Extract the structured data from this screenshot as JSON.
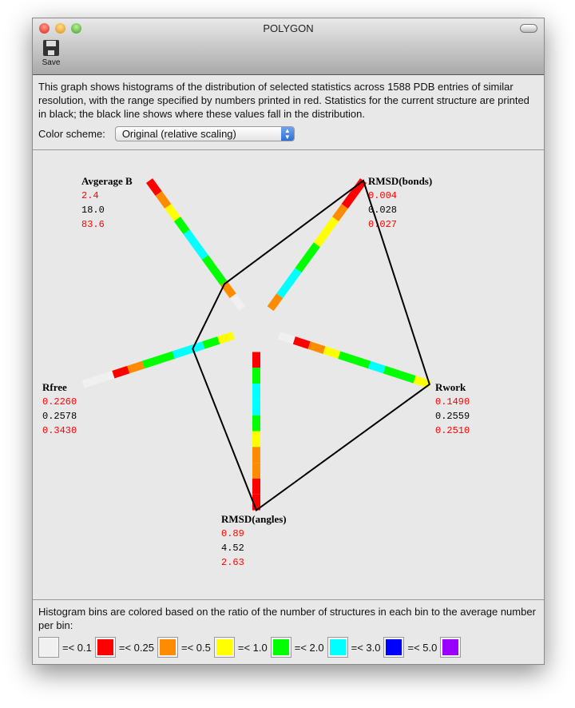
{
  "window": {
    "title": "POLYGON"
  },
  "toolbar": {
    "save_label": "Save"
  },
  "description": "This graph shows histograms of the distribution of selected statistics across 1588 PDB entries of similar resolution, with the range specified by numbers printed in red.  Statistics for the current structure are printed in black; the black line shows where these values fall in the distribution.",
  "color_scheme": {
    "label": "Color scheme:",
    "selected": "Original (relative scaling)"
  },
  "chart_data": {
    "type": "radar-histogram",
    "axes": [
      {
        "name": "RMSD(angles)",
        "min": "0.89",
        "current": "4.52",
        "max": "2.63",
        "bins": [
          "#ff0000",
          "#00ff00",
          "#00ffff",
          "#00ffff",
          "#00ff00",
          "#ffff00",
          "#ff8c00",
          "#ff8c00",
          "#ff0000",
          "#ff0000"
        ]
      },
      {
        "name": "Rwork",
        "min": "0.1490",
        "current": "0.2559",
        "max": "0.2510",
        "bins": [
          "#f0f0f0",
          "#ff0000",
          "#ff8c00",
          "#ffff00",
          "#00ff00",
          "#00ff00",
          "#00ffff",
          "#00ff00",
          "#00ff00",
          "#ffff00"
        ]
      },
      {
        "name": "RMSD(bonds)",
        "min": "0.004",
        "current": "0.028",
        "max": "0.027",
        "bins": [
          "#ff8c00",
          "#00ffff",
          "#00ffff",
          "#00ff00",
          "#00ff00",
          "#ffff00",
          "#ffff00",
          "#ff8c00",
          "#ff0000",
          "#ff0000"
        ]
      },
      {
        "name": "Avgerage B",
        "min": "2.4",
        "current": "18.0",
        "max": "83.6",
        "bins": [
          "#f0f0f0",
          "#ff8c00",
          "#00ff00",
          "#00ff00",
          "#00ffff",
          "#00ffff",
          "#00ff00",
          "#ffff00",
          "#ff8c00",
          "#ff0000"
        ]
      },
      {
        "name": "Rfree",
        "min": "0.2260",
        "current": "0.2578",
        "max": "0.3430",
        "bins": [
          "#ffff00",
          "#00ff00",
          "#00ffff",
          "#00ffff",
          "#00ff00",
          "#00ff00",
          "#ff8c00",
          "#ff0000",
          "#f0f0f0",
          "#f0f0f0"
        ]
      }
    ]
  },
  "legend": {
    "text": "Histogram bins are colored based on the ratio of the number of structures in each bin to the average number per bin:",
    "items": [
      {
        "color": "#f0f0f0",
        "label": "=< 0.1"
      },
      {
        "color": "#ff0000",
        "label": "=< 0.25"
      },
      {
        "color": "#ff8c00",
        "label": "=< 0.5"
      },
      {
        "color": "#ffff00",
        "label": "=< 1.0"
      },
      {
        "color": "#00ff00",
        "label": "=< 2.0"
      },
      {
        "color": "#00ffff",
        "label": "=< 3.0"
      },
      {
        "color": "#0000ff",
        "label": "=< 5.0"
      },
      {
        "color": "#9900ff",
        "label": ""
      }
    ]
  }
}
